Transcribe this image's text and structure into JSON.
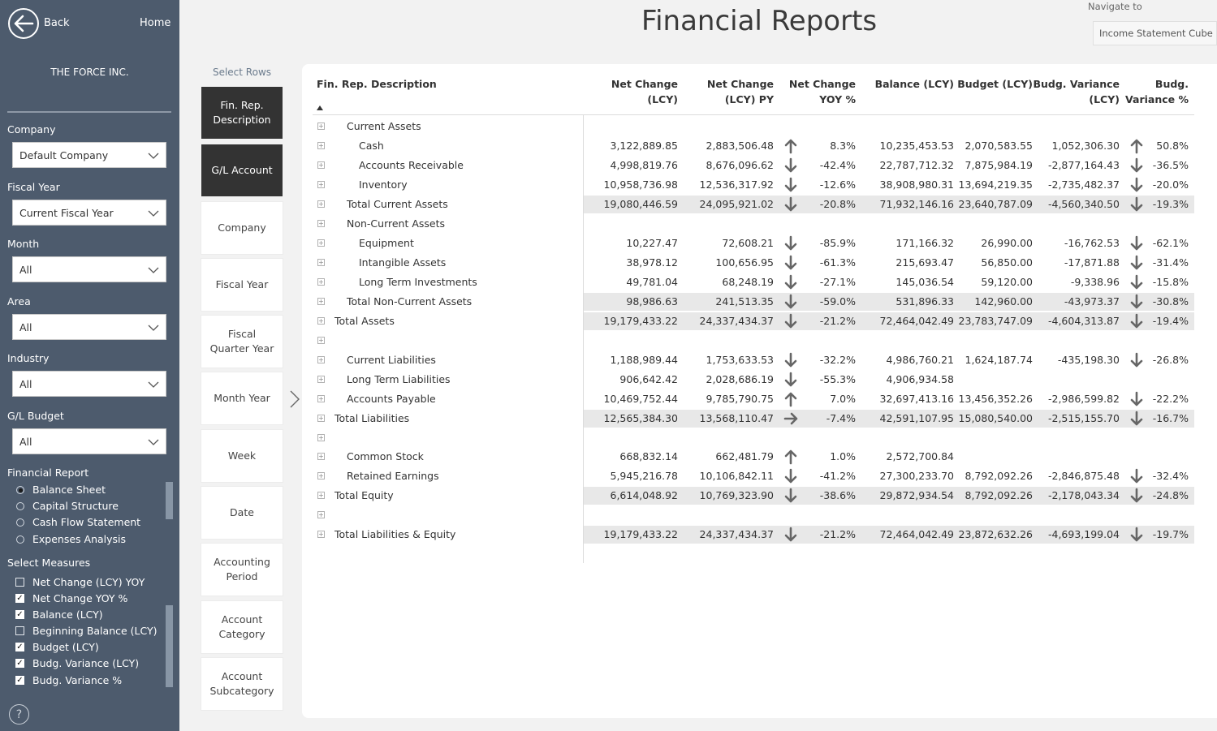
{
  "sidebar": {
    "back_label": "Back",
    "home_label": "Home",
    "company_name": "THE FORCE INC.",
    "filters": [
      {
        "label": "Company",
        "value": "Default Company"
      },
      {
        "label": "Fiscal Year",
        "value": "Current Fiscal Year"
      },
      {
        "label": "Month",
        "value": "All"
      },
      {
        "label": "Area",
        "value": "All"
      },
      {
        "label": "Industry",
        "value": "All"
      },
      {
        "label": "G/L Budget",
        "value": "All"
      }
    ],
    "financial_report": {
      "label": "Financial Report",
      "options": [
        "Balance Sheet",
        "Capital Structure",
        "Cash Flow Statement",
        "Expenses Analysis"
      ],
      "selected": "Balance Sheet"
    },
    "measures": {
      "label": "Select Measures",
      "items": [
        {
          "label": "Net Change (LCY) YOY",
          "checked": false
        },
        {
          "label": "Net Change YOY %",
          "checked": true
        },
        {
          "label": "Balance (LCY)",
          "checked": true
        },
        {
          "label": "Beginning Balance (LCY)",
          "checked": false
        },
        {
          "label": "Budget (LCY)",
          "checked": true
        },
        {
          "label": "Budg. Variance (LCY)",
          "checked": true
        },
        {
          "label": "Budg. Variance %",
          "checked": true
        }
      ]
    },
    "help": "?"
  },
  "header": {
    "title": "Financial Reports",
    "navigate_label": "Navigate to",
    "navigate_value": "Income Statement Cube"
  },
  "select_rows": {
    "label": "Select Rows",
    "items": [
      {
        "label": "Fin. Rep. Description",
        "active": true
      },
      {
        "label": "G/L Account",
        "active": true
      },
      {
        "label": "Company",
        "active": false
      },
      {
        "label": "Fiscal Year",
        "active": false
      },
      {
        "label": "Fiscal Quarter Year",
        "active": false
      },
      {
        "label": "Month Year",
        "active": false
      },
      {
        "label": "Week",
        "active": false
      },
      {
        "label": "Date",
        "active": false
      },
      {
        "label": "Accounting Period",
        "active": false
      },
      {
        "label": "Account Category",
        "active": false
      },
      {
        "label": "Account Subcategory",
        "active": false
      }
    ]
  },
  "table": {
    "columns": {
      "desc": "Fin. Rep. Description",
      "nc1": "Net Change",
      "nc2": "(LCY)",
      "py1": "Net Change",
      "py2": "(LCY) PY",
      "yoy1": "Net Change",
      "yoy2": "YOY %",
      "bal": "Balance (LCY)",
      "bud": "Budget (LCY)",
      "bv1": "Budg. Variance",
      "bv2": "(LCY)",
      "bvp1": "Budg.",
      "bvp2": "Variance %"
    },
    "rows": [
      {
        "desc": "Current Assets",
        "indent": 1,
        "total": false,
        "nc": "",
        "py": "",
        "yoy_icon": "",
        "yoy": "",
        "bal": "",
        "bud": "",
        "bv": "",
        "bvp_icon": "",
        "bvp": ""
      },
      {
        "desc": "Cash",
        "indent": 2,
        "total": false,
        "nc": "3,122,889.85",
        "py": "2,883,506.48",
        "yoy_icon": "up",
        "yoy": "8.3%",
        "bal": "10,235,453.53",
        "bud": "2,070,583.55",
        "bv": "1,052,306.30",
        "bvp_icon": "up",
        "bvp": "50.8%"
      },
      {
        "desc": "Accounts Receivable",
        "indent": 2,
        "total": false,
        "nc": "4,998,819.76",
        "py": "8,676,096.62",
        "yoy_icon": "down",
        "yoy": "-42.4%",
        "bal": "22,787,712.32",
        "bud": "7,875,984.19",
        "bv": "-2,877,164.43",
        "bvp_icon": "down",
        "bvp": "-36.5%"
      },
      {
        "desc": "Inventory",
        "indent": 2,
        "total": false,
        "nc": "10,958,736.98",
        "py": "12,536,317.92",
        "yoy_icon": "down",
        "yoy": "-12.6%",
        "bal": "38,908,980.31",
        "bud": "13,694,219.35",
        "bv": "-2,735,482.37",
        "bvp_icon": "down",
        "bvp": "-20.0%"
      },
      {
        "desc": "Total Current Assets",
        "indent": 1,
        "total": true,
        "nc": "19,080,446.59",
        "py": "24,095,921.02",
        "yoy_icon": "down",
        "yoy": "-20.8%",
        "bal": "71,932,146.16",
        "bud": "23,640,787.09",
        "bv": "-4,560,340.50",
        "bvp_icon": "down",
        "bvp": "-19.3%"
      },
      {
        "desc": "Non-Current Assets",
        "indent": 1,
        "total": false,
        "nc": "",
        "py": "",
        "yoy_icon": "",
        "yoy": "",
        "bal": "",
        "bud": "",
        "bv": "",
        "bvp_icon": "",
        "bvp": ""
      },
      {
        "desc": "Equipment",
        "indent": 2,
        "total": false,
        "nc": "10,227.47",
        "py": "72,608.21",
        "yoy_icon": "down",
        "yoy": "-85.9%",
        "bal": "171,166.32",
        "bud": "26,990.00",
        "bv": "-16,762.53",
        "bvp_icon": "down",
        "bvp": "-62.1%"
      },
      {
        "desc": "Intangible Assets",
        "indent": 2,
        "total": false,
        "nc": "38,978.12",
        "py": "100,656.95",
        "yoy_icon": "down",
        "yoy": "-61.3%",
        "bal": "215,693.47",
        "bud": "56,850.00",
        "bv": "-17,871.88",
        "bvp_icon": "down",
        "bvp": "-31.4%"
      },
      {
        "desc": "Long Term Investments",
        "indent": 2,
        "total": false,
        "nc": "49,781.04",
        "py": "68,248.19",
        "yoy_icon": "down",
        "yoy": "-27.1%",
        "bal": "145,036.54",
        "bud": "59,120.00",
        "bv": "-9,338.96",
        "bvp_icon": "down",
        "bvp": "-15.8%"
      },
      {
        "desc": "Total Non-Current Assets",
        "indent": 1,
        "total": true,
        "nc": "98,986.63",
        "py": "241,513.35",
        "yoy_icon": "down",
        "yoy": "-59.0%",
        "bal": "531,896.33",
        "bud": "142,960.00",
        "bv": "-43,973.37",
        "bvp_icon": "down",
        "bvp": "-30.8%"
      },
      {
        "desc": "Total Assets",
        "indent": 0,
        "total": true,
        "nc": "19,179,433.22",
        "py": "24,337,434.37",
        "yoy_icon": "down",
        "yoy": "-21.2%",
        "bal": "72,464,042.49",
        "bud": "23,783,747.09",
        "bv": "-4,604,313.87",
        "bvp_icon": "down",
        "bvp": "-19.4%"
      },
      {
        "desc": "",
        "indent": 0,
        "total": false,
        "nc": "",
        "py": "",
        "yoy_icon": "",
        "yoy": "",
        "bal": "",
        "bud": "",
        "bv": "",
        "bvp_icon": "",
        "bvp": ""
      },
      {
        "desc": "Current Liabilities",
        "indent": 1,
        "total": false,
        "nc": "1,188,989.44",
        "py": "1,753,633.53",
        "yoy_icon": "down",
        "yoy": "-32.2%",
        "bal": "4,986,760.21",
        "bud": "1,624,187.74",
        "bv": "-435,198.30",
        "bvp_icon": "down",
        "bvp": "-26.8%"
      },
      {
        "desc": "Long Term Liabilities",
        "indent": 1,
        "total": false,
        "nc": "906,642.42",
        "py": "2,028,686.19",
        "yoy_icon": "down",
        "yoy": "-55.3%",
        "bal": "4,906,934.58",
        "bud": "",
        "bv": "",
        "bvp_icon": "",
        "bvp": ""
      },
      {
        "desc": "Accounts Payable",
        "indent": 1,
        "total": false,
        "nc": "10,469,752.44",
        "py": "9,785,790.75",
        "yoy_icon": "up",
        "yoy": "7.0%",
        "bal": "32,697,413.16",
        "bud": "13,456,352.26",
        "bv": "-2,986,599.82",
        "bvp_icon": "down",
        "bvp": "-22.2%"
      },
      {
        "desc": "Total Liabilities",
        "indent": 0,
        "total": true,
        "nc": "12,565,384.30",
        "py": "13,568,110.47",
        "yoy_icon": "right",
        "yoy": "-7.4%",
        "bal": "42,591,107.95",
        "bud": "15,080,540.00",
        "bv": "-2,515,155.70",
        "bvp_icon": "down",
        "bvp": "-16.7%"
      },
      {
        "desc": "",
        "indent": 0,
        "total": false,
        "nc": "",
        "py": "",
        "yoy_icon": "",
        "yoy": "",
        "bal": "",
        "bud": "",
        "bv": "",
        "bvp_icon": "",
        "bvp": ""
      },
      {
        "desc": "Common Stock",
        "indent": 1,
        "total": false,
        "nc": "668,832.14",
        "py": "662,481.79",
        "yoy_icon": "up",
        "yoy": "1.0%",
        "bal": "2,572,700.84",
        "bud": "",
        "bv": "",
        "bvp_icon": "",
        "bvp": ""
      },
      {
        "desc": "Retained Earnings",
        "indent": 1,
        "total": false,
        "nc": "5,945,216.78",
        "py": "10,106,842.11",
        "yoy_icon": "down",
        "yoy": "-41.2%",
        "bal": "27,300,233.70",
        "bud": "8,792,092.26",
        "bv": "-2,846,875.48",
        "bvp_icon": "down",
        "bvp": "-32.4%"
      },
      {
        "desc": "Total Equity",
        "indent": 0,
        "total": true,
        "nc": "6,614,048.92",
        "py": "10,769,323.90",
        "yoy_icon": "down",
        "yoy": "-38.6%",
        "bal": "29,872,934.54",
        "bud": "8,792,092.26",
        "bv": "-2,178,043.34",
        "bvp_icon": "down",
        "bvp": "-24.8%"
      },
      {
        "desc": "",
        "indent": 0,
        "total": false,
        "nc": "",
        "py": "",
        "yoy_icon": "",
        "yoy": "",
        "bal": "",
        "bud": "",
        "bv": "",
        "bvp_icon": "",
        "bvp": ""
      },
      {
        "desc": "Total Liabilities & Equity",
        "indent": 0,
        "total": true,
        "nc": "19,179,433.22",
        "py": "24,337,434.37",
        "yoy_icon": "down",
        "yoy": "-21.2%",
        "bal": "72,464,042.49",
        "bud": "23,872,632.26",
        "bv": "-4,693,199.04",
        "bvp_icon": "down",
        "bvp": "-19.7%"
      }
    ]
  }
}
